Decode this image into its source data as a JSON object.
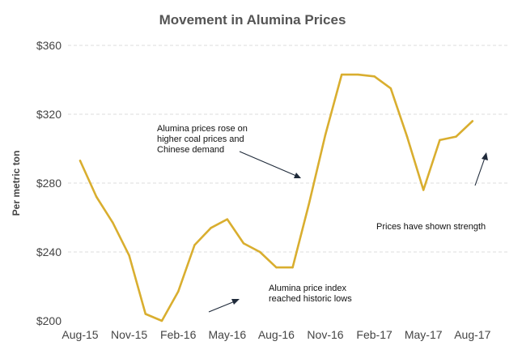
{
  "chart_data": {
    "type": "line",
    "title": "Movement in Alumina Prices",
    "ylabel": "Per metric ton",
    "xlabel": "",
    "ylim": [
      200,
      360
    ],
    "yticks": [
      200,
      240,
      280,
      320,
      360
    ],
    "ytick_labels": [
      "$200",
      "$240",
      "$280",
      "$320",
      "$360"
    ],
    "x_tick_labels": [
      "Aug-15",
      "Nov-15",
      "Feb-16",
      "May-16",
      "Aug-16",
      "Nov-16",
      "Feb-17",
      "May-17",
      "Aug-17"
    ],
    "x_tick_index": [
      0,
      3,
      6,
      9,
      12,
      15,
      18,
      21,
      24
    ],
    "grid": true,
    "series_color": "#D9AE2F",
    "series": [
      {
        "values": [
          293,
          272,
          257,
          238,
          204,
          200,
          217,
          244,
          254,
          259,
          245,
          240,
          231,
          231,
          268,
          308,
          343,
          343,
          342,
          335,
          307,
          276,
          305,
          307,
          316
        ]
      }
    ],
    "annotations": [
      {
        "lines": [
          "Alumina prices rose on",
          "higher coal prices and",
          "Chinese demand"
        ]
      },
      {
        "lines": [
          "Alumina price index",
          "reached historic lows"
        ]
      },
      {
        "lines": [
          "Prices have shown strength"
        ]
      }
    ]
  }
}
